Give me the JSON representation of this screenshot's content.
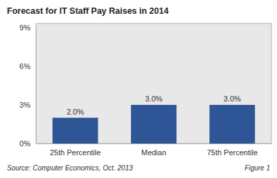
{
  "chart_data": {
    "type": "bar",
    "title": "Forecast for IT Staff Pay Raises in 2014",
    "categories": [
      "25th Percentile",
      "Median",
      "75th Percentile"
    ],
    "values": [
      2.0,
      3.0,
      3.0
    ],
    "value_labels": [
      "2.0%",
      "3.0%",
      "3.0%"
    ],
    "color": "#2e5596",
    "ylim": [
      0,
      9
    ],
    "yticks": [
      {
        "value": 0,
        "label": "0%"
      },
      {
        "value": 3,
        "label": "3%"
      },
      {
        "value": 6,
        "label": "6%"
      },
      {
        "value": 9,
        "label": "9%"
      }
    ],
    "grid": false,
    "data_labels": true,
    "annotations": [
      "Source: Computer Economics, Oct. 2013",
      "Figure 1"
    ]
  }
}
